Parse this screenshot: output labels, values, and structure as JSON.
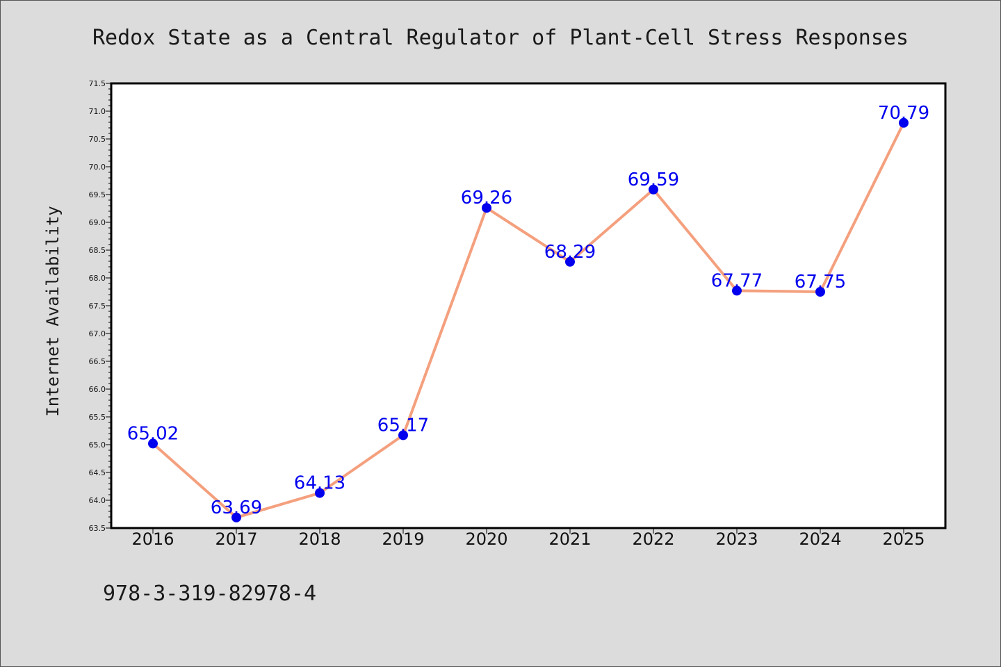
{
  "chart_data": {
    "type": "line",
    "title": "Redox State as a Central Regulator of Plant-Cell Stress Responses",
    "xlabel": "",
    "ylabel": "Internet Availability",
    "categories": [
      "2016",
      "2017",
      "2018",
      "2019",
      "2020",
      "2021",
      "2022",
      "2023",
      "2024",
      "2025"
    ],
    "values": [
      65.02,
      63.69,
      64.13,
      65.17,
      69.26,
      68.29,
      69.59,
      67.77,
      67.75,
      70.79
    ],
    "value_labels": [
      "65.02",
      "63.69",
      "64.13",
      "65.17",
      "69.26",
      "68.29",
      "69.59",
      "67.77",
      "67.75",
      "70.79"
    ],
    "ylim": [
      63.5,
      71.5
    ],
    "yticks": [
      "63.5",
      "64.0",
      "64.5",
      "65.0",
      "65.5",
      "66.0",
      "66.5",
      "67.0",
      "67.5",
      "68.0",
      "68.5",
      "69.0",
      "69.5",
      "70.0",
      "70.5",
      "71.0",
      "71.5"
    ],
    "grid": false,
    "legend": "none",
    "colors": {
      "line": "#f4a07e",
      "marker": "#0000ee",
      "label": "#0000ee",
      "background": "#dcdcdc",
      "plot_background": "#ffffff"
    }
  },
  "footer": {
    "isbn": "978-3-319-82978-4"
  }
}
